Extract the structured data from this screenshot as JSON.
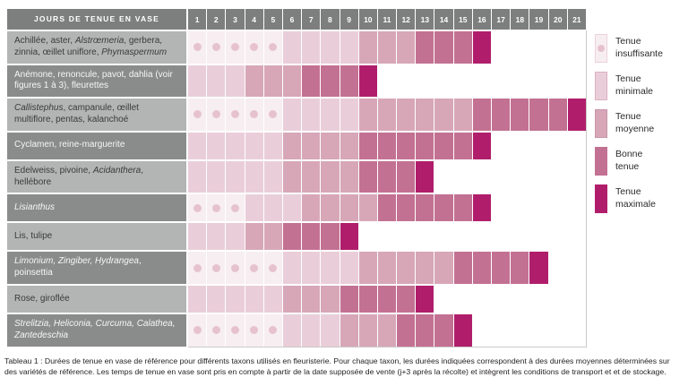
{
  "palette": {
    "header_bg": "#7d7f7e",
    "row_label_light_bg": "#b3b5b4",
    "row_label_dark_bg": "#8a8c8b",
    "row_label_light_text": "#3a3a3a",
    "row_label_dark_text": "#f5f5f5",
    "table_border": "#c9cac9",
    "levels": {
      "insuffisante": {
        "fill": "#f7eef1",
        "dot": "#e6c2cf",
        "border": "#ecd2db"
      },
      "minimale": {
        "fill": "#e9ced9",
        "border": "#dcb0c2"
      },
      "moyenne": {
        "fill": "#d7a7b8",
        "border": "#c994aa"
      },
      "bonne": {
        "fill": "#c37192",
        "border": "#b560822"
      },
      "maximale": {
        "fill": "#b01e6b",
        "border": "#b01e6b"
      }
    }
  },
  "table": {
    "title": "JOURS DE TENUE EN VASE",
    "day_min": 1,
    "day_max": 21
  },
  "legend": {
    "items": [
      {
        "level": "insuffisante",
        "has_dot": true,
        "label_lines": [
          "Tenue",
          "insuffisante"
        ]
      },
      {
        "level": "minimale",
        "has_dot": false,
        "label_lines": [
          "Tenue",
          "minimale"
        ]
      },
      {
        "level": "moyenne",
        "has_dot": false,
        "label_lines": [
          "Tenue",
          "moyenne"
        ]
      },
      {
        "level": "bonne",
        "has_dot": false,
        "label_lines": [
          "Bonne",
          "tenue"
        ]
      },
      {
        "level": "maximale",
        "has_dot": false,
        "label_lines": [
          "Tenue",
          "maximale"
        ]
      }
    ]
  },
  "caption": "Tableau 1 : Durées de tenue en vase de référence pour différents taxons utilisés en fleuristerie. Pour chaque taxon, les durées indiquées correspondent à des durées moyennes déterminées sur des variétés de référence. Les temps de tenue en vase sont pris en compte à partir de la date supposée de vente (j+3 après la récolte) et intègrent les conditions de transport et et de stockage.",
  "chart_data": {
    "type": "heatmap",
    "title": "JOURS DE TENUE EN VASE",
    "x_unit": "jours",
    "x_range": [
      1,
      21
    ],
    "levels_order": [
      "insuffisante",
      "minimale",
      "moyenne",
      "bonne",
      "maximale"
    ],
    "legend_labels": {
      "insuffisante": "Tenue insuffisante",
      "minimale": "Tenue minimale",
      "moyenne": "Tenue moyenne",
      "bonne": "Bonne tenue",
      "maximale": "Tenue maximale"
    },
    "rows": [
      {
        "shade": "light",
        "label_segments": [
          {
            "t": "Achillée, aster, ",
            "i": false
          },
          {
            "t": "Alstrœmeria",
            "i": true
          },
          {
            "t": ", gerbera, zinnia, œillet uniflore, ",
            "i": false
          },
          {
            "t": "Phymaspermum",
            "i": true
          }
        ],
        "ranges": {
          "insuffisante": [
            1,
            5
          ],
          "minimale": [
            6,
            9
          ],
          "moyenne": [
            10,
            12
          ],
          "bonne": [
            13,
            15
          ],
          "maximale": [
            16,
            16
          ]
        }
      },
      {
        "shade": "dark",
        "label_segments": [
          {
            "t": "Anémone, renoncule, pavot, dahlia (voir figures 1 à 3), fleurettes",
            "i": false
          }
        ],
        "ranges": {
          "minimale": [
            1,
            3
          ],
          "moyenne": [
            4,
            6
          ],
          "bonne": [
            7,
            9
          ],
          "maximale": [
            10,
            10
          ]
        }
      },
      {
        "shade": "light",
        "label_segments": [
          {
            "t": "Callistephus",
            "i": true
          },
          {
            "t": ", campanule, œillet multiflore, pentas, kalanchoé",
            "i": false
          }
        ],
        "ranges": {
          "insuffisante": [
            1,
            5
          ],
          "minimale": [
            6,
            9
          ],
          "moyenne": [
            10,
            15
          ],
          "bonne": [
            16,
            20
          ],
          "maximale": [
            21,
            21
          ]
        }
      },
      {
        "shade": "dark",
        "label_segments": [
          {
            "t": "Cyclamen, reine-marguerite",
            "i": false
          }
        ],
        "ranges": {
          "minimale": [
            1,
            5
          ],
          "moyenne": [
            6,
            9
          ],
          "bonne": [
            10,
            15
          ],
          "maximale": [
            16,
            16
          ]
        }
      },
      {
        "shade": "light",
        "label_segments": [
          {
            "t": "Edelweiss, pivoine, ",
            "i": false
          },
          {
            "t": "Acidanthera",
            "i": true
          },
          {
            "t": ", hellébore",
            "i": false
          }
        ],
        "ranges": {
          "minimale": [
            1,
            5
          ],
          "moyenne": [
            6,
            9
          ],
          "bonne": [
            10,
            12
          ],
          "maximale": [
            13,
            13
          ]
        }
      },
      {
        "shade": "dark",
        "label_segments": [
          {
            "t": "Lisianthus",
            "i": true
          }
        ],
        "ranges": {
          "insuffisante": [
            1,
            3
          ],
          "minimale": [
            4,
            6
          ],
          "moyenne": [
            7,
            10
          ],
          "bonne": [
            11,
            15
          ],
          "maximale": [
            16,
            16
          ]
        }
      },
      {
        "shade": "light",
        "label_segments": [
          {
            "t": "Lis, tulipe",
            "i": false
          }
        ],
        "ranges": {
          "minimale": [
            1,
            3
          ],
          "moyenne": [
            4,
            5
          ],
          "bonne": [
            6,
            8
          ],
          "maximale": [
            9,
            9
          ]
        }
      },
      {
        "shade": "dark",
        "label_segments": [
          {
            "t": "Limonium, Zingiber, Hydrangea",
            "i": true
          },
          {
            "t": ", poinsettia",
            "i": false
          }
        ],
        "ranges": {
          "insuffisante": [
            1,
            5
          ],
          "minimale": [
            6,
            9
          ],
          "moyenne": [
            10,
            14
          ],
          "bonne": [
            15,
            18
          ],
          "maximale": [
            19,
            19
          ]
        }
      },
      {
        "shade": "light",
        "label_segments": [
          {
            "t": "Rose, giroflée",
            "i": false
          }
        ],
        "ranges": {
          "minimale": [
            1,
            5
          ],
          "moyenne": [
            6,
            8
          ],
          "bonne": [
            9,
            12
          ],
          "maximale": [
            13,
            13
          ]
        }
      },
      {
        "shade": "dark",
        "label_segments": [
          {
            "t": "Strelitzia, Heliconia, Curcuma, Calathea, Zantedeschia",
            "i": true
          }
        ],
        "ranges": {
          "insuffisante": [
            1,
            5
          ],
          "minimale": [
            6,
            8
          ],
          "moyenne": [
            9,
            11
          ],
          "bonne": [
            12,
            14
          ],
          "maximale": [
            15,
            15
          ]
        }
      }
    ]
  }
}
